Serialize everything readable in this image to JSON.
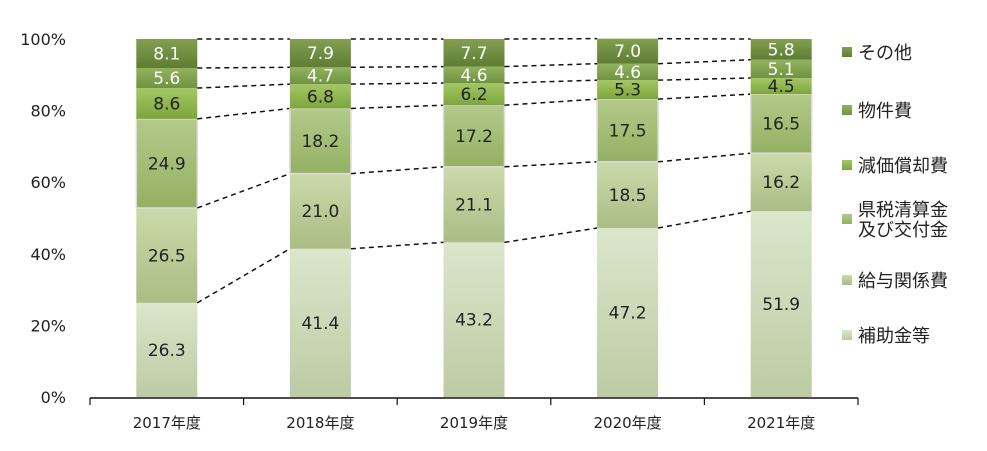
{
  "chart_data": {
    "type": "bar",
    "stacked": "percent",
    "categories": [
      "2017年度",
      "2018年度",
      "2019年度",
      "2020年度",
      "2021年度"
    ],
    "ylim": [
      0,
      100
    ],
    "yticks": [
      "0%",
      "20%",
      "40%",
      "60%",
      "80%",
      "100%"
    ],
    "legend_position": "right",
    "series_connector_lines": "dashed",
    "series": [
      {
        "name": "補助金等",
        "values": [
          26.3,
          41.4,
          43.2,
          47.2,
          51.9
        ],
        "color": [
          "#dbe6cb",
          "#bccb a4"
        ]
      },
      {
        "name": "給与関係費",
        "values": [
          26.5,
          21.0,
          21.1,
          18.5,
          16.2
        ],
        "color": [
          "#cbdaab",
          "#a9bd84"
        ]
      },
      {
        "name": "県税清算金及び交付金",
        "legend_lines": [
          "県税清算金",
          "及び交付金"
        ],
        "values": [
          24.9,
          18.2,
          17.2,
          17.5,
          16.5
        ],
        "color": [
          "#b3ca8a",
          "#94b063"
        ]
      },
      {
        "name": "減価償却費",
        "values": [
          8.6,
          6.8,
          6.2,
          5.3,
          4.5
        ],
        "color": [
          "#a4c765",
          "#7ea53c"
        ]
      },
      {
        "name": "物件費",
        "values": [
          5.6,
          4.7,
          4.6,
          4.6,
          5.1
        ],
        "color": [
          "#92b25e",
          "#6f9342"
        ]
      },
      {
        "name": "その他",
        "values": [
          8.1,
          7.9,
          7.7,
          7.0,
          5.8
        ],
        "color": [
          "#82a050",
          "#5f7d33"
        ]
      }
    ]
  }
}
